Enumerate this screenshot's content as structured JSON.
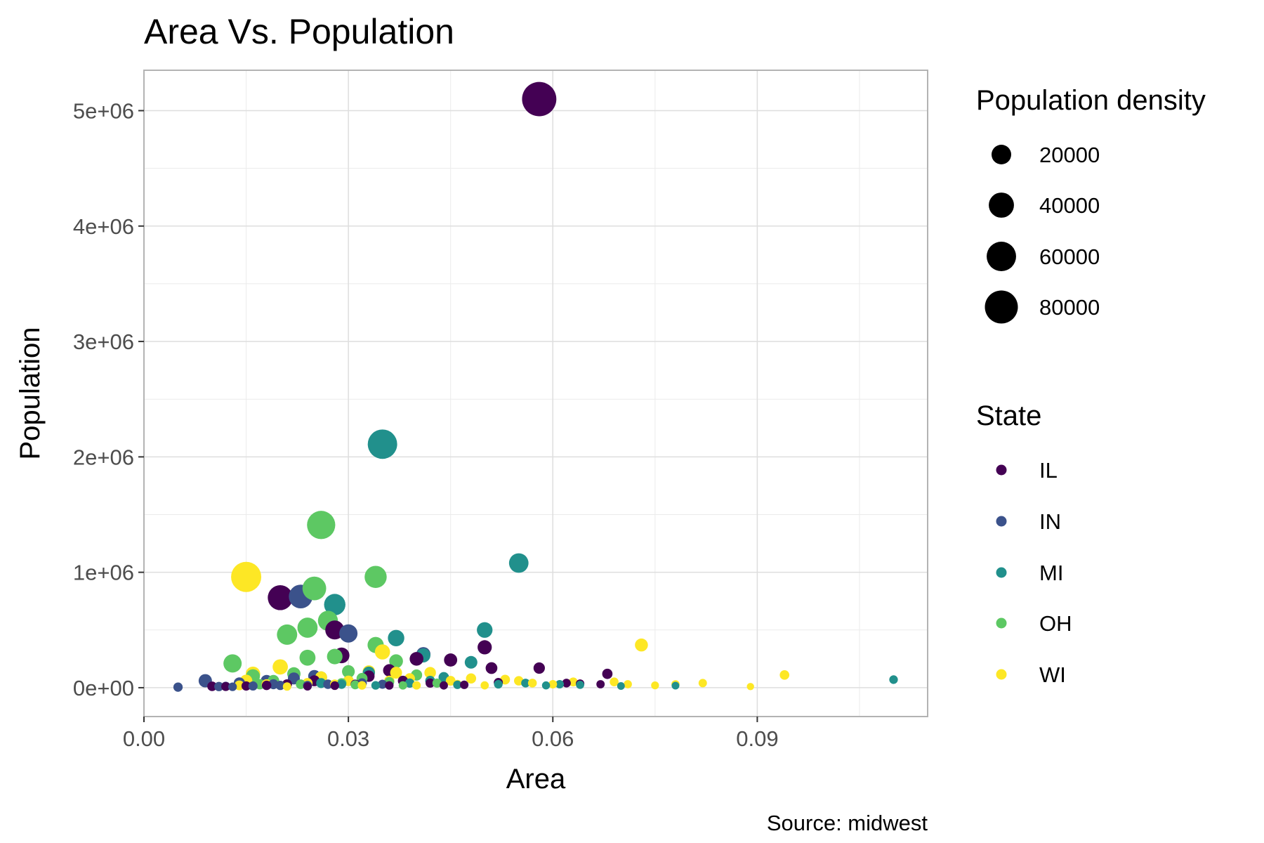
{
  "chart_data": {
    "type": "scatter",
    "title": "Area Vs. Population",
    "xlabel": "Area",
    "ylabel": "Population",
    "caption": "Source: midwest",
    "xlim": [
      0,
      0.115
    ],
    "ylim": [
      -250000,
      5350000
    ],
    "x_ticks": [
      0.0,
      0.03,
      0.06,
      0.09
    ],
    "x_tick_labels": [
      "0.00",
      "0.03",
      "0.06",
      "0.09"
    ],
    "y_ticks": [
      0,
      1000000,
      2000000,
      3000000,
      4000000,
      5000000
    ],
    "y_tick_labels": [
      "0e+00",
      "1e+06",
      "2e+06",
      "3e+06",
      "4e+06",
      "5e+06"
    ],
    "grid": true,
    "legend_placement": "right",
    "size_legend": {
      "title": "Population density",
      "values": [
        20000,
        40000,
        60000,
        80000
      ],
      "labels": [
        "20000",
        "40000",
        "60000",
        "80000"
      ]
    },
    "color_legend": {
      "title": "State",
      "labels": [
        "IL",
        "IN",
        "MI",
        "OH",
        "WI"
      ],
      "colors": [
        "#440154",
        "#3b528b",
        "#21908c",
        "#5dc863",
        "#fde725"
      ]
    },
    "series": [
      {
        "name": "IL",
        "color": "#440154",
        "points": [
          {
            "x": 0.058,
            "y": 5100000,
            "density": 88000
          },
          {
            "x": 0.02,
            "y": 780000,
            "density": 39000
          },
          {
            "x": 0.028,
            "y": 500000,
            "density": 18000
          },
          {
            "x": 0.029,
            "y": 280000,
            "density": 10000
          },
          {
            "x": 0.05,
            "y": 350000,
            "density": 7000
          },
          {
            "x": 0.045,
            "y": 240000,
            "density": 5300
          },
          {
            "x": 0.051,
            "y": 170000,
            "density": 3300
          },
          {
            "x": 0.058,
            "y": 170000,
            "density": 2900
          },
          {
            "x": 0.068,
            "y": 120000,
            "density": 1800
          },
          {
            "x": 0.04,
            "y": 250000,
            "density": 6200
          },
          {
            "x": 0.036,
            "y": 150000,
            "density": 4200
          },
          {
            "x": 0.033,
            "y": 100000,
            "density": 3000
          },
          {
            "x": 0.025,
            "y": 60000,
            "density": 2400
          },
          {
            "x": 0.021,
            "y": 30000,
            "density": 1400
          },
          {
            "x": 0.018,
            "y": 20000,
            "density": 1100
          },
          {
            "x": 0.015,
            "y": 15000,
            "density": 1000
          },
          {
            "x": 0.012,
            "y": 10000,
            "density": 800
          },
          {
            "x": 0.01,
            "y": 12000,
            "density": 1200
          },
          {
            "x": 0.031,
            "y": 30000,
            "density": 1000
          },
          {
            "x": 0.042,
            "y": 40000,
            "density": 950
          },
          {
            "x": 0.052,
            "y": 45000,
            "density": 870
          },
          {
            "x": 0.062,
            "y": 40000,
            "density": 650
          },
          {
            "x": 0.064,
            "y": 35000,
            "density": 550
          },
          {
            "x": 0.067,
            "y": 30000,
            "density": 450
          },
          {
            "x": 0.038,
            "y": 60000,
            "density": 1600
          },
          {
            "x": 0.047,
            "y": 25000,
            "density": 530
          },
          {
            "x": 0.044,
            "y": 20000,
            "density": 450
          },
          {
            "x": 0.036,
            "y": 20000,
            "density": 550
          },
          {
            "x": 0.028,
            "y": 18000,
            "density": 640
          },
          {
            "x": 0.024,
            "y": 12000,
            "density": 500
          }
        ]
      },
      {
        "name": "IN",
        "color": "#3b528b",
        "points": [
          {
            "x": 0.023,
            "y": 790000,
            "density": 34000
          },
          {
            "x": 0.03,
            "y": 470000,
            "density": 16000
          },
          {
            "x": 0.041,
            "y": 290000,
            "density": 7000
          },
          {
            "x": 0.009,
            "y": 60000,
            "density": 5500
          },
          {
            "x": 0.005,
            "y": 5000,
            "density": 1000
          },
          {
            "x": 0.011,
            "y": 10000,
            "density": 1000
          },
          {
            "x": 0.012,
            "y": 12000,
            "density": 1000
          },
          {
            "x": 0.014,
            "y": 40000,
            "density": 2800
          },
          {
            "x": 0.018,
            "y": 60000,
            "density": 3300
          },
          {
            "x": 0.022,
            "y": 80000,
            "density": 3600
          },
          {
            "x": 0.025,
            "y": 100000,
            "density": 4000
          },
          {
            "x": 0.027,
            "y": 30000,
            "density": 1100
          },
          {
            "x": 0.02,
            "y": 20000,
            "density": 1000
          },
          {
            "x": 0.016,
            "y": 15000,
            "density": 950
          },
          {
            "x": 0.032,
            "y": 40000,
            "density": 1250
          },
          {
            "x": 0.035,
            "y": 30000,
            "density": 850
          },
          {
            "x": 0.019,
            "y": 30000,
            "density": 1500
          },
          {
            "x": 0.024,
            "y": 20000,
            "density": 850
          },
          {
            "x": 0.013,
            "y": 8000,
            "density": 600
          }
        ]
      },
      {
        "name": "MI",
        "color": "#21908c",
        "points": [
          {
            "x": 0.035,
            "y": 2110000,
            "density": 60000
          },
          {
            "x": 0.055,
            "y": 1080000,
            "density": 19500
          },
          {
            "x": 0.028,
            "y": 720000,
            "density": 25500
          },
          {
            "x": 0.037,
            "y": 430000,
            "density": 11500
          },
          {
            "x": 0.05,
            "y": 500000,
            "density": 9800
          },
          {
            "x": 0.041,
            "y": 280000,
            "density": 6800
          },
          {
            "x": 0.048,
            "y": 220000,
            "density": 4500
          },
          {
            "x": 0.11,
            "y": 70000,
            "density": 600
          },
          {
            "x": 0.033,
            "y": 130000,
            "density": 3900
          },
          {
            "x": 0.03,
            "y": 60000,
            "density": 2000
          },
          {
            "x": 0.026,
            "y": 40000,
            "density": 1500
          },
          {
            "x": 0.044,
            "y": 90000,
            "density": 2000
          },
          {
            "x": 0.052,
            "y": 30000,
            "density": 600
          },
          {
            "x": 0.059,
            "y": 20000,
            "density": 350
          },
          {
            "x": 0.064,
            "y": 25000,
            "density": 400
          },
          {
            "x": 0.07,
            "y": 15000,
            "density": 220
          },
          {
            "x": 0.078,
            "y": 18000,
            "density": 230
          },
          {
            "x": 0.039,
            "y": 40000,
            "density": 1000
          },
          {
            "x": 0.046,
            "y": 25000,
            "density": 550
          },
          {
            "x": 0.034,
            "y": 20000,
            "density": 600
          },
          {
            "x": 0.056,
            "y": 40000,
            "density": 700
          },
          {
            "x": 0.061,
            "y": 30000,
            "density": 500
          },
          {
            "x": 0.029,
            "y": 30000,
            "density": 1000
          },
          {
            "x": 0.042,
            "y": 60000,
            "density": 1400
          }
        ]
      },
      {
        "name": "OH",
        "color": "#5dc863",
        "points": [
          {
            "x": 0.026,
            "y": 1410000,
            "density": 54000
          },
          {
            "x": 0.034,
            "y": 960000,
            "density": 28000
          },
          {
            "x": 0.025,
            "y": 860000,
            "density": 34000
          },
          {
            "x": 0.027,
            "y": 580000,
            "density": 21000
          },
          {
            "x": 0.024,
            "y": 520000,
            "density": 21500
          },
          {
            "x": 0.021,
            "y": 460000,
            "density": 22000
          },
          {
            "x": 0.034,
            "y": 370000,
            "density": 11000
          },
          {
            "x": 0.028,
            "y": 270000,
            "density": 9600
          },
          {
            "x": 0.024,
            "y": 260000,
            "density": 10500
          },
          {
            "x": 0.013,
            "y": 210000,
            "density": 16000
          },
          {
            "x": 0.037,
            "y": 230000,
            "density": 6200
          },
          {
            "x": 0.03,
            "y": 140000,
            "density": 4700
          },
          {
            "x": 0.016,
            "y": 100000,
            "density": 6500
          },
          {
            "x": 0.022,
            "y": 120000,
            "density": 5500
          },
          {
            "x": 0.026,
            "y": 90000,
            "density": 3500
          },
          {
            "x": 0.032,
            "y": 80000,
            "density": 2500
          },
          {
            "x": 0.04,
            "y": 110000,
            "density": 2700
          },
          {
            "x": 0.019,
            "y": 60000,
            "density": 3200
          },
          {
            "x": 0.029,
            "y": 40000,
            "density": 1400
          },
          {
            "x": 0.036,
            "y": 50000,
            "density": 1400
          },
          {
            "x": 0.023,
            "y": 30000,
            "density": 1300
          },
          {
            "x": 0.043,
            "y": 40000,
            "density": 900
          },
          {
            "x": 0.017,
            "y": 30000,
            "density": 1800
          },
          {
            "x": 0.031,
            "y": 25000,
            "density": 800
          },
          {
            "x": 0.038,
            "y": 20000,
            "density": 500
          }
        ]
      },
      {
        "name": "WI",
        "color": "#fde725",
        "points": [
          {
            "x": 0.015,
            "y": 960000,
            "density": 64000
          },
          {
            "x": 0.073,
            "y": 370000,
            "density": 5000
          },
          {
            "x": 0.035,
            "y": 310000,
            "density": 8800
          },
          {
            "x": 0.02,
            "y": 180000,
            "density": 9000
          },
          {
            "x": 0.094,
            "y": 110000,
            "density": 1200
          },
          {
            "x": 0.016,
            "y": 120000,
            "density": 7500
          },
          {
            "x": 0.015,
            "y": 60000,
            "density": 4000
          },
          {
            "x": 0.014,
            "y": 20000,
            "density": 1400
          },
          {
            "x": 0.021,
            "y": 10000,
            "density": 500
          },
          {
            "x": 0.026,
            "y": 90000,
            "density": 3500
          },
          {
            "x": 0.028,
            "y": 30000,
            "density": 1100
          },
          {
            "x": 0.033,
            "y": 140000,
            "density": 4200
          },
          {
            "x": 0.037,
            "y": 130000,
            "density": 3500
          },
          {
            "x": 0.039,
            "y": 80000,
            "density": 2000
          },
          {
            "x": 0.042,
            "y": 130000,
            "density": 3100
          },
          {
            "x": 0.045,
            "y": 60000,
            "density": 1300
          },
          {
            "x": 0.048,
            "y": 80000,
            "density": 1700
          },
          {
            "x": 0.053,
            "y": 70000,
            "density": 1300
          },
          {
            "x": 0.055,
            "y": 60000,
            "density": 1100
          },
          {
            "x": 0.057,
            "y": 40000,
            "density": 700
          },
          {
            "x": 0.06,
            "y": 30000,
            "density": 500
          },
          {
            "x": 0.063,
            "y": 50000,
            "density": 800
          },
          {
            "x": 0.069,
            "y": 50000,
            "density": 700
          },
          {
            "x": 0.071,
            "y": 30000,
            "density": 420
          },
          {
            "x": 0.075,
            "y": 20000,
            "density": 270
          },
          {
            "x": 0.078,
            "y": 30000,
            "density": 380
          },
          {
            "x": 0.082,
            "y": 40000,
            "density": 480
          },
          {
            "x": 0.089,
            "y": 10000,
            "density": 110
          },
          {
            "x": 0.05,
            "y": 20000,
            "density": 400
          },
          {
            "x": 0.032,
            "y": 20000,
            "density": 600
          },
          {
            "x": 0.024,
            "y": 40000,
            "density": 1600
          },
          {
            "x": 0.018,
            "y": 30000,
            "density": 1600
          },
          {
            "x": 0.046,
            "y": 30000,
            "density": 650
          },
          {
            "x": 0.04,
            "y": 20000,
            "density": 500
          },
          {
            "x": 0.03,
            "y": 60000,
            "density": 2000
          },
          {
            "x": 0.036,
            "y": 60000,
            "density": 1700
          }
        ]
      }
    ]
  }
}
